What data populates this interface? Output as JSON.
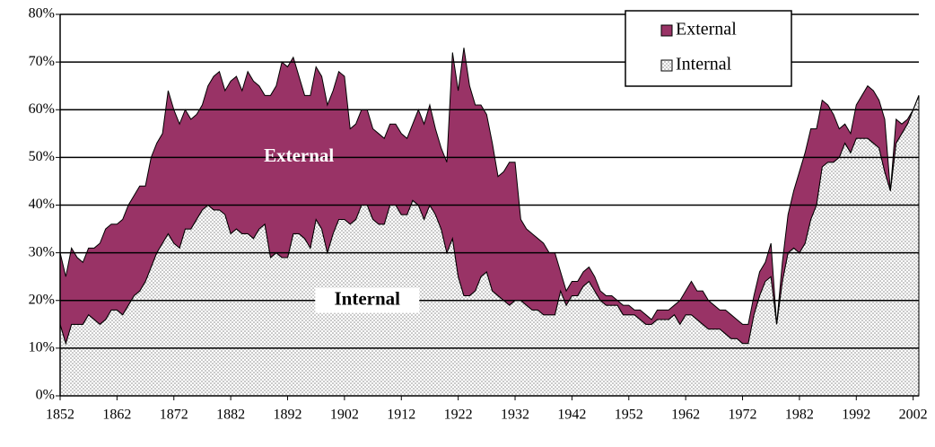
{
  "chart_data": {
    "type": "stacked_area",
    "x": [
      1852,
      1853,
      1854,
      1855,
      1856,
      1857,
      1858,
      1859,
      1860,
      1861,
      1862,
      1863,
      1864,
      1865,
      1866,
      1867,
      1868,
      1869,
      1870,
      1871,
      1872,
      1873,
      1874,
      1875,
      1876,
      1877,
      1878,
      1879,
      1880,
      1881,
      1882,
      1883,
      1884,
      1885,
      1886,
      1887,
      1888,
      1889,
      1890,
      1891,
      1892,
      1893,
      1894,
      1895,
      1896,
      1897,
      1898,
      1899,
      1900,
      1901,
      1902,
      1903,
      1904,
      1905,
      1906,
      1907,
      1908,
      1909,
      1910,
      1911,
      1912,
      1913,
      1914,
      1915,
      1916,
      1917,
      1918,
      1919,
      1920,
      1921,
      1922,
      1923,
      1924,
      1925,
      1926,
      1927,
      1928,
      1929,
      1930,
      1931,
      1932,
      1933,
      1934,
      1935,
      1936,
      1937,
      1938,
      1939,
      1940,
      1941,
      1942,
      1943,
      1944,
      1945,
      1946,
      1947,
      1948,
      1949,
      1950,
      1951,
      1952,
      1953,
      1954,
      1955,
      1956,
      1957,
      1958,
      1959,
      1960,
      1961,
      1962,
      1963,
      1964,
      1965,
      1966,
      1967,
      1968,
      1969,
      1970,
      1971,
      1972,
      1973,
      1974,
      1975,
      1976,
      1977,
      1978,
      1979,
      1980,
      1981,
      1982,
      1983,
      1984,
      1985,
      1986,
      1987,
      1988,
      1989,
      1990,
      1991,
      1992,
      1993,
      1994,
      1995,
      1996,
      1997,
      1998,
      1999,
      2000,
      2001,
      2002,
      2003
    ],
    "series": [
      {
        "name": "Internal",
        "color": "#8c8c8c",
        "values": [
          15,
          11,
          15,
          15,
          15,
          17,
          16,
          15,
          16,
          18,
          18,
          17,
          19,
          21,
          22,
          24,
          27,
          30,
          32,
          34,
          32,
          31,
          35,
          35,
          37,
          39,
          40,
          39,
          39,
          38,
          34,
          35,
          34,
          34,
          33,
          35,
          36,
          29,
          30,
          29,
          29,
          34,
          34,
          33,
          31,
          37,
          35,
          30,
          34,
          37,
          37,
          36,
          37,
          40,
          40,
          37,
          36,
          36,
          40,
          40,
          38,
          38,
          41,
          40,
          37,
          40,
          38,
          35,
          30,
          33,
          25,
          21,
          21,
          22,
          25,
          26,
          22,
          21,
          20,
          19,
          20,
          20,
          19,
          18,
          18,
          17,
          17,
          17,
          22,
          19,
          21,
          21,
          23,
          24,
          22,
          20,
          19,
          19,
          19,
          17,
          17,
          17,
          16,
          15,
          15,
          16,
          16,
          16,
          17,
          15,
          17,
          17,
          16,
          15,
          14,
          14,
          14,
          13,
          12,
          12,
          11,
          11,
          17,
          21,
          24,
          25,
          15,
          24,
          30,
          31,
          30,
          32,
          37,
          40,
          48,
          49,
          49,
          50,
          53,
          51,
          54,
          54,
          54,
          53,
          52,
          47,
          43,
          53,
          55,
          57,
          60,
          63
        ]
      },
      {
        "name": "External",
        "color": "#993366",
        "values": [
          15,
          14,
          16,
          14,
          13,
          14,
          15,
          17,
          19,
          18,
          18,
          20,
          21,
          21,
          22,
          20,
          23,
          23,
          23,
          30,
          28,
          26,
          25,
          23,
          22,
          22,
          25,
          28,
          29,
          26,
          32,
          32,
          30,
          34,
          33,
          30,
          27,
          34,
          35,
          41,
          40,
          37,
          33,
          30,
          32,
          32,
          32,
          31,
          30,
          31,
          30,
          20,
          20,
          20,
          20,
          19,
          19,
          18,
          17,
          17,
          17,
          16,
          16,
          20,
          20,
          21,
          18,
          17,
          19,
          39,
          39,
          52,
          44,
          39,
          36,
          33,
          31,
          25,
          27,
          30,
          29,
          17,
          16,
          16,
          15,
          15,
          13,
          13,
          4,
          3,
          3,
          3,
          3,
          3,
          3,
          2,
          2,
          2,
          1,
          2,
          2,
          1,
          2,
          2,
          1,
          2,
          2,
          2,
          2,
          5,
          5,
          7,
          6,
          7,
          6,
          5,
          4,
          5,
          5,
          4,
          4,
          4,
          4,
          5,
          4,
          7,
          0,
          4,
          8,
          12,
          17,
          19,
          19,
          16,
          14,
          12,
          10,
          6,
          4,
          4,
          7,
          9,
          11,
          11,
          10,
          11,
          0,
          5,
          2,
          1,
          0,
          0
        ]
      }
    ],
    "xlim": [
      1852,
      2003
    ],
    "xticks": [
      1852,
      1862,
      1872,
      1882,
      1892,
      1902,
      1912,
      1922,
      1932,
      1942,
      1952,
      1962,
      1972,
      1982,
      1992,
      2002
    ],
    "ylim": [
      0,
      80
    ],
    "yticks": [
      {
        "value": 0,
        "label": "0%"
      },
      {
        "value": 10,
        "label": "10%"
      },
      {
        "value": 20,
        "label": "20%"
      },
      {
        "value": 30,
        "label": "30%"
      },
      {
        "value": 40,
        "label": "40%"
      },
      {
        "value": 50,
        "label": "50%"
      },
      {
        "value": 60,
        "label": "60%"
      },
      {
        "value": 70,
        "label": "70%"
      },
      {
        "value": 80,
        "label": "80%"
      }
    ],
    "grid": true,
    "legend": "top-right",
    "annotations": [
      {
        "text": "External",
        "x": 1894,
        "y": 50
      },
      {
        "text": "Internal",
        "x": 1906,
        "y": 20
      }
    ]
  }
}
